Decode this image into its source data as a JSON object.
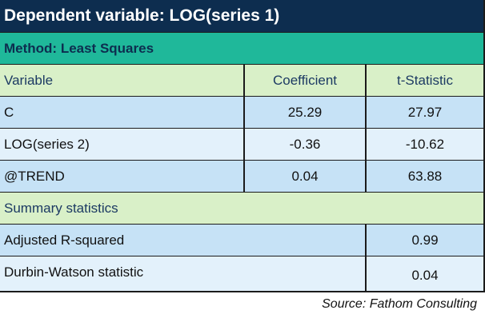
{
  "title": "Dependent variable: LOG(series 1)",
  "method": "Method: Least Squares",
  "columns": [
    "Variable",
    "Coefficient",
    "t-Statistic"
  ],
  "rows": [
    {
      "variable": "C",
      "coefficient": "25.29",
      "t_statistic": "27.97"
    },
    {
      "variable": "LOG(series 2)",
      "coefficient": "-0.36",
      "t_statistic": "-10.62"
    },
    {
      "variable": "@TREND",
      "coefficient": "0.04",
      "t_statistic": "63.88"
    }
  ],
  "summary_header": "Summary statistics",
  "summary": [
    {
      "label": "Adjusted R-squared",
      "value": "0.99"
    },
    {
      "label": "Durbin-Watson statistic",
      "value": "0.04"
    }
  ],
  "source": "Source: Fathom Consulting",
  "colors": {
    "title_bg": "#0d2d4f",
    "method_bg": "#1fb89a",
    "header_bg": "#d9f0c8",
    "row_bg": "#c6e2f6",
    "row_alt_bg": "#e3f1fb"
  }
}
